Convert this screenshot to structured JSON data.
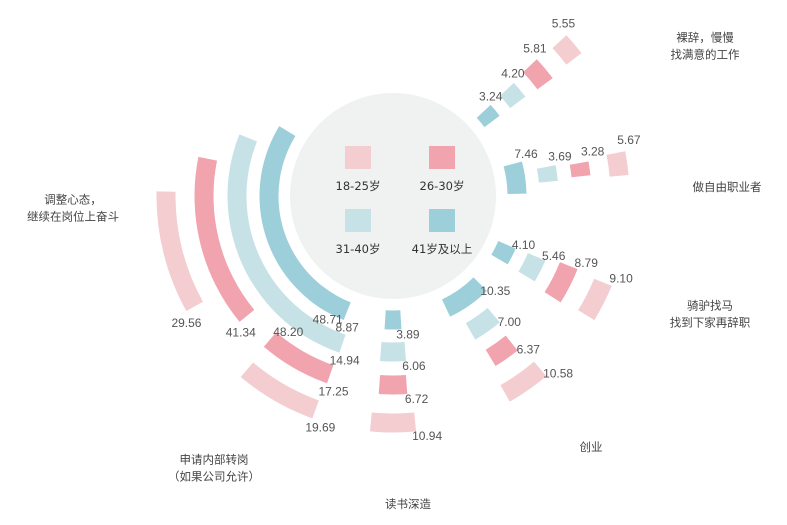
{
  "chart_data": {
    "type": "radial-bar",
    "series": [
      {
        "name": "18-25岁",
        "color": "#F3CDD0"
      },
      {
        "name": "26-30岁",
        "color": "#F1A3AE"
      },
      {
        "name": "31-40岁",
        "color": "#C7E2E7"
      },
      {
        "name": "41岁及以上",
        "color": "#9DCFDA"
      }
    ],
    "categories": [
      {
        "label": [
          "调整心态，",
          "继续在岗位上奋斗"
        ],
        "values": [
          29.56,
          41.34,
          48.2,
          48.71
        ]
      },
      {
        "label": [
          "申请内部转岗",
          "（如果公司允许）"
        ],
        "values": [
          19.69,
          17.25,
          14.94,
          8.87
        ]
      },
      {
        "label": [
          "读书深造"
        ],
        "values": [
          10.94,
          6.72,
          6.06,
          3.89
        ]
      },
      {
        "label": [
          "创业"
        ],
        "values": [
          10.58,
          6.37,
          7.0,
          10.35
        ]
      },
      {
        "label": [
          "骑驴找马",
          "找到下家再辞职"
        ],
        "values": [
          9.1,
          8.79,
          5.46,
          4.1
        ]
      },
      {
        "label": [
          "做自由职业者"
        ],
        "values": [
          5.67,
          3.28,
          3.69,
          7.46
        ]
      },
      {
        "label": [
          "裸辞，慢慢",
          "找满意的工作"
        ],
        "values": [
          5.55,
          5.81,
          4.2,
          3.24
        ]
      }
    ]
  }
}
